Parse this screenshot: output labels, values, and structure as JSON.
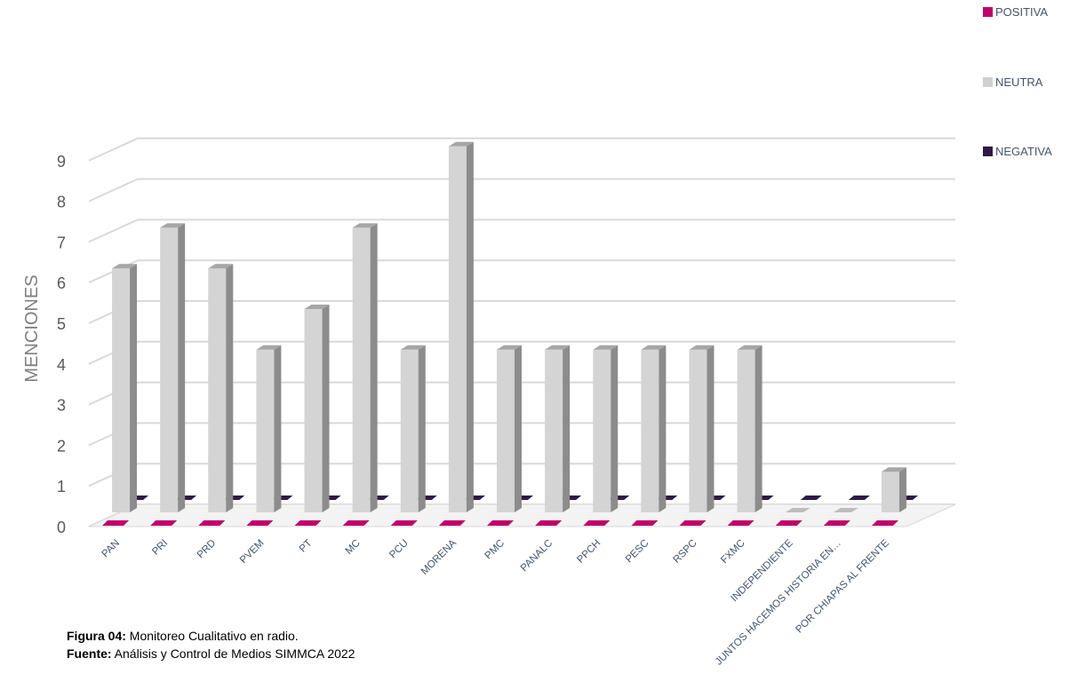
{
  "chart_data": {
    "type": "bar",
    "title": "",
    "ylabel": "MENCIONES",
    "xlabel": "",
    "ylim": [
      0,
      9
    ],
    "yticks": [
      0,
      1,
      2,
      3,
      4,
      5,
      6,
      7,
      8,
      9
    ],
    "grid": true,
    "legend_position": "top-right",
    "categories": [
      "PAN",
      "PRI",
      "PRD",
      "PVEM",
      "PT",
      "MC",
      "PCU",
      "MORENA",
      "PMC",
      "PANALC",
      "PPCH",
      "PESC",
      "RSPC",
      "FXMC",
      "INDEPENDIENTE",
      "JUNTOS HACEMOS HISTORIA EN…",
      "POR CHIAPAS AL FRENTE"
    ],
    "series": [
      {
        "name": "POSITIVA",
        "color": "#c0006a",
        "values": [
          0,
          0,
          0,
          0,
          0,
          0,
          0,
          0,
          0,
          0,
          0,
          0,
          0,
          0,
          0,
          0,
          0
        ]
      },
      {
        "name": "NEUTRA",
        "color": "#d0d0d0",
        "values": [
          6,
          7,
          6,
          4,
          5,
          7,
          4,
          9,
          4,
          4,
          4,
          4,
          4,
          4,
          0,
          0,
          1
        ]
      },
      {
        "name": "NEGATIVA",
        "color": "#2e1a47",
        "values": [
          0,
          0,
          0,
          0,
          0,
          0,
          0,
          0,
          0,
          0,
          0,
          0,
          0,
          0,
          0,
          0,
          0
        ]
      }
    ]
  },
  "caption": {
    "figure_label": "Figura 04:",
    "figure_text": " Monitoreo Cualitativo en radio.",
    "source_label": "Fuente:",
    "source_text": " Análisis y Control de Medios SIMMCA 2022"
  }
}
